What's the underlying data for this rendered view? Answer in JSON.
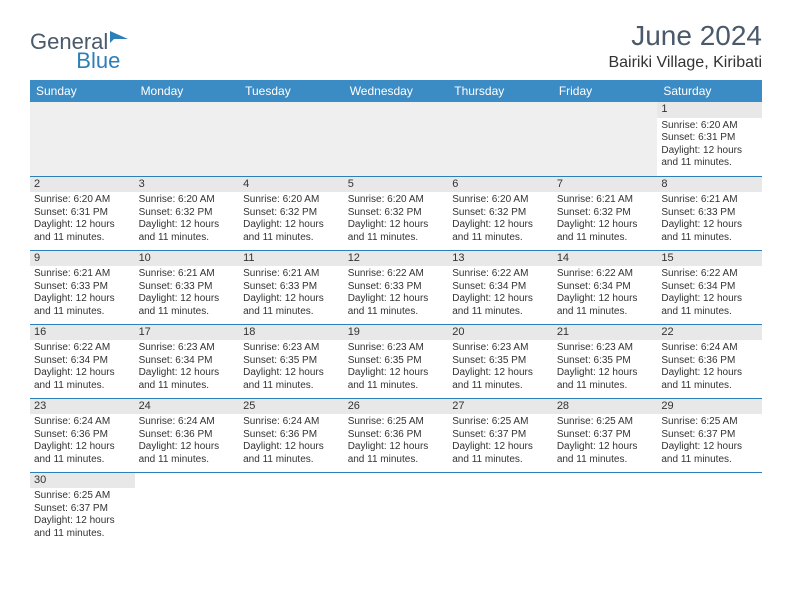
{
  "logo": {
    "text1": "General",
    "text2": "Blue"
  },
  "title": "June 2024",
  "location": "Bairiki Village, Kiribati",
  "colors": {
    "header_bg": "#3b8bc4",
    "header_text": "#ffffff",
    "border": "#2c7fb8",
    "daynum_bg": "#e8e8e8",
    "logo_gray": "#4a5a6a",
    "logo_blue": "#2c7fb8"
  },
  "weekdays": [
    "Sunday",
    "Monday",
    "Tuesday",
    "Wednesday",
    "Thursday",
    "Friday",
    "Saturday"
  ],
  "first_weekday_index": 6,
  "days": [
    {
      "n": 1,
      "sunrise": "6:20 AM",
      "sunset": "6:31 PM",
      "daylight": "12 hours and 11 minutes."
    },
    {
      "n": 2,
      "sunrise": "6:20 AM",
      "sunset": "6:31 PM",
      "daylight": "12 hours and 11 minutes."
    },
    {
      "n": 3,
      "sunrise": "6:20 AM",
      "sunset": "6:32 PM",
      "daylight": "12 hours and 11 minutes."
    },
    {
      "n": 4,
      "sunrise": "6:20 AM",
      "sunset": "6:32 PM",
      "daylight": "12 hours and 11 minutes."
    },
    {
      "n": 5,
      "sunrise": "6:20 AM",
      "sunset": "6:32 PM",
      "daylight": "12 hours and 11 minutes."
    },
    {
      "n": 6,
      "sunrise": "6:20 AM",
      "sunset": "6:32 PM",
      "daylight": "12 hours and 11 minutes."
    },
    {
      "n": 7,
      "sunrise": "6:21 AM",
      "sunset": "6:32 PM",
      "daylight": "12 hours and 11 minutes."
    },
    {
      "n": 8,
      "sunrise": "6:21 AM",
      "sunset": "6:33 PM",
      "daylight": "12 hours and 11 minutes."
    },
    {
      "n": 9,
      "sunrise": "6:21 AM",
      "sunset": "6:33 PM",
      "daylight": "12 hours and 11 minutes."
    },
    {
      "n": 10,
      "sunrise": "6:21 AM",
      "sunset": "6:33 PM",
      "daylight": "12 hours and 11 minutes."
    },
    {
      "n": 11,
      "sunrise": "6:21 AM",
      "sunset": "6:33 PM",
      "daylight": "12 hours and 11 minutes."
    },
    {
      "n": 12,
      "sunrise": "6:22 AM",
      "sunset": "6:33 PM",
      "daylight": "12 hours and 11 minutes."
    },
    {
      "n": 13,
      "sunrise": "6:22 AM",
      "sunset": "6:34 PM",
      "daylight": "12 hours and 11 minutes."
    },
    {
      "n": 14,
      "sunrise": "6:22 AM",
      "sunset": "6:34 PM",
      "daylight": "12 hours and 11 minutes."
    },
    {
      "n": 15,
      "sunrise": "6:22 AM",
      "sunset": "6:34 PM",
      "daylight": "12 hours and 11 minutes."
    },
    {
      "n": 16,
      "sunrise": "6:22 AM",
      "sunset": "6:34 PM",
      "daylight": "12 hours and 11 minutes."
    },
    {
      "n": 17,
      "sunrise": "6:23 AM",
      "sunset": "6:34 PM",
      "daylight": "12 hours and 11 minutes."
    },
    {
      "n": 18,
      "sunrise": "6:23 AM",
      "sunset": "6:35 PM",
      "daylight": "12 hours and 11 minutes."
    },
    {
      "n": 19,
      "sunrise": "6:23 AM",
      "sunset": "6:35 PM",
      "daylight": "12 hours and 11 minutes."
    },
    {
      "n": 20,
      "sunrise": "6:23 AM",
      "sunset": "6:35 PM",
      "daylight": "12 hours and 11 minutes."
    },
    {
      "n": 21,
      "sunrise": "6:23 AM",
      "sunset": "6:35 PM",
      "daylight": "12 hours and 11 minutes."
    },
    {
      "n": 22,
      "sunrise": "6:24 AM",
      "sunset": "6:36 PM",
      "daylight": "12 hours and 11 minutes."
    },
    {
      "n": 23,
      "sunrise": "6:24 AM",
      "sunset": "6:36 PM",
      "daylight": "12 hours and 11 minutes."
    },
    {
      "n": 24,
      "sunrise": "6:24 AM",
      "sunset": "6:36 PM",
      "daylight": "12 hours and 11 minutes."
    },
    {
      "n": 25,
      "sunrise": "6:24 AM",
      "sunset": "6:36 PM",
      "daylight": "12 hours and 11 minutes."
    },
    {
      "n": 26,
      "sunrise": "6:25 AM",
      "sunset": "6:36 PM",
      "daylight": "12 hours and 11 minutes."
    },
    {
      "n": 27,
      "sunrise": "6:25 AM",
      "sunset": "6:37 PM",
      "daylight": "12 hours and 11 minutes."
    },
    {
      "n": 28,
      "sunrise": "6:25 AM",
      "sunset": "6:37 PM",
      "daylight": "12 hours and 11 minutes."
    },
    {
      "n": 29,
      "sunrise": "6:25 AM",
      "sunset": "6:37 PM",
      "daylight": "12 hours and 11 minutes."
    },
    {
      "n": 30,
      "sunrise": "6:25 AM",
      "sunset": "6:37 PM",
      "daylight": "12 hours and 11 minutes."
    }
  ],
  "labels": {
    "sunrise": "Sunrise:",
    "sunset": "Sunset:",
    "daylight": "Daylight:"
  }
}
